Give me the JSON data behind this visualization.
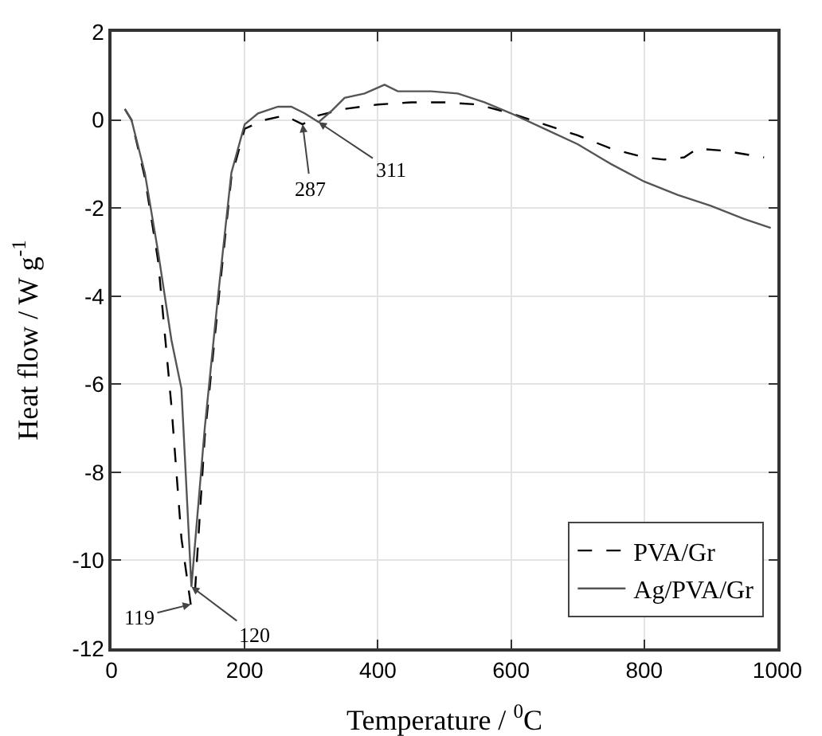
{
  "chart_data": {
    "type": "line",
    "xlabel": "Temperature / $^{0}$C",
    "ylabel": "Heat flow / W g$^{-1}$",
    "xlim": [
      0,
      1000
    ],
    "xticks": [
      0,
      200,
      400,
      600,
      800,
      1000
    ],
    "ylim": [
      -12,
      2
    ],
    "yticks": [
      -12,
      -10,
      -8,
      -6,
      -4,
      -2,
      0,
      2
    ],
    "grid": true,
    "legend": "bottom right",
    "marker": "none",
    "series": [
      {
        "name": "PVA/Gr",
        "color": "#000000",
        "line_style": "dashed",
        "x": [
          20,
          30,
          50,
          70,
          90,
          105,
          119,
          125,
          140,
          160,
          180,
          200,
          230,
          260,
          287,
          310,
          350,
          400,
          450,
          500,
          550,
          600,
          650,
          700,
          750,
          800,
          830,
          860,
          880,
          920,
          980
        ],
        "values": [
          0.25,
          0,
          -1.3,
          -3.2,
          -6.5,
          -9.5,
          -11,
          -10.8,
          -7.2,
          -4.2,
          -1.3,
          -0.2,
          0,
          0.1,
          -0.1,
          0.1,
          0.25,
          0.35,
          0.4,
          0.4,
          0.35,
          0.15,
          -0.1,
          -0.35,
          -0.65,
          -0.85,
          -0.9,
          -0.85,
          -0.65,
          -0.7,
          -0.85
        ]
      },
      {
        "name": "Ag/PVA/Gr",
        "color": "#555555",
        "line_style": "solid",
        "x": [
          20,
          30,
          50,
          70,
          90,
          105,
          120,
          140,
          160,
          180,
          200,
          220,
          250,
          270,
          290,
          311,
          330,
          350,
          380,
          410,
          430,
          480,
          520,
          560,
          600,
          650,
          700,
          750,
          800,
          850,
          900,
          950,
          990
        ],
        "values": [
          0.25,
          0,
          -1.2,
          -3,
          -5,
          -6.1,
          -10.6,
          -7,
          -4,
          -1.2,
          -0.1,
          0.15,
          0.3,
          0.3,
          0.15,
          -0.05,
          0.2,
          0.5,
          0.6,
          0.8,
          0.65,
          0.65,
          0.6,
          0.4,
          0.15,
          -0.2,
          -0.55,
          -1,
          -1.4,
          -1.7,
          -1.95,
          -2.25,
          -2.45
        ]
      }
    ],
    "annotations": [
      {
        "text": "119",
        "x": 119,
        "y": -11
      },
      {
        "text": "120",
        "x": 120,
        "y": -10.6
      },
      {
        "text": "287",
        "x": 287,
        "y": -0.1
      },
      {
        "text": "311",
        "x": 311,
        "y": -0.05
      }
    ]
  }
}
